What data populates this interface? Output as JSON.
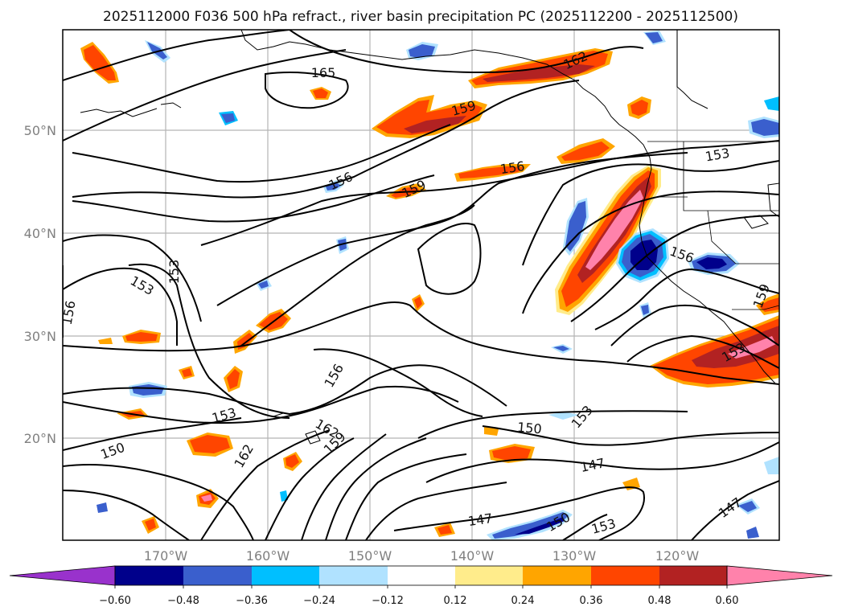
{
  "title": "2025112000 F036 500 hPa refract., river basin precipitation PC (2025112200 - 2025112500)",
  "latitude_labels": [
    "50°N",
    "40°N",
    "30°N",
    "20°N"
  ],
  "longitude_labels": [
    "170°W",
    "160°W",
    "150°W",
    "140°W",
    "130°W",
    "120°W"
  ],
  "contour_labels": [
    {
      "id": "165",
      "text": "165"
    },
    {
      "id": "162-ne",
      "text": "162"
    },
    {
      "id": "159-n",
      "text": "159"
    },
    {
      "id": "156-a",
      "text": "156"
    },
    {
      "id": "156-b",
      "text": "156"
    },
    {
      "id": "159-c",
      "text": "159"
    },
    {
      "id": "153-ne",
      "text": "153"
    },
    {
      "id": "156-coast",
      "text": "156"
    },
    {
      "id": "159-e",
      "text": "159"
    },
    {
      "id": "153-se",
      "text": "153"
    },
    {
      "id": "153-v",
      "text": "153"
    },
    {
      "id": "153-w",
      "text": "153"
    },
    {
      "id": "156-w",
      "text": "156"
    },
    {
      "id": "156-c",
      "text": "156"
    },
    {
      "id": "153-c",
      "text": "153"
    },
    {
      "id": "162-c",
      "text": "162"
    },
    {
      "id": "159-s",
      "text": "159"
    },
    {
      "id": "162-sw",
      "text": "162"
    },
    {
      "id": "150-w",
      "text": "150"
    },
    {
      "id": "150-c",
      "text": "150"
    },
    {
      "id": "153-r",
      "text": "153"
    },
    {
      "id": "147-c",
      "text": "147"
    },
    {
      "id": "147-s",
      "text": "147"
    },
    {
      "id": "150-s",
      "text": "150"
    },
    {
      "id": "153-s",
      "text": "153"
    },
    {
      "id": "147-e",
      "text": "147"
    }
  ],
  "colorbar": {
    "colors": [
      "#9932CC",
      "#00008B",
      "#3A5FCD",
      "#00BFFF",
      "#B0E2FF",
      "#FFFFFF",
      "#FFEC8B",
      "#FFA500",
      "#FF4500",
      "#B22222",
      "#FF82AB"
    ],
    "tick_labels": [
      "−0.60",
      "−0.48",
      "−0.36",
      "−0.24",
      "−0.12",
      "0.12",
      "0.24",
      "0.36",
      "0.48",
      "0.60"
    ]
  }
}
